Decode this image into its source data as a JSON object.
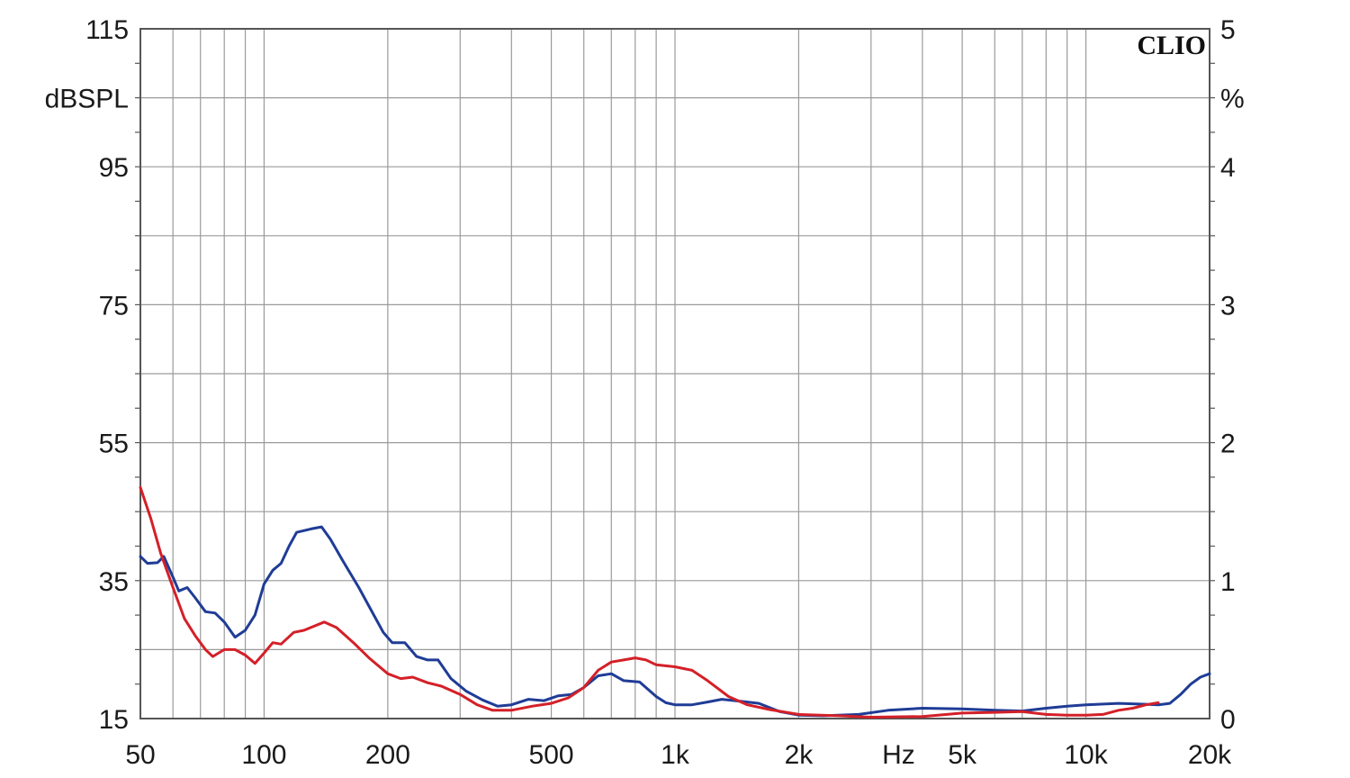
{
  "chart_data": {
    "type": "line",
    "brand": "CLIO",
    "x_axis": {
      "scale": "log",
      "range": [
        50,
        20000
      ],
      "tick_values": [
        50,
        100,
        200,
        500,
        1000,
        2000,
        5000,
        10000,
        20000
      ],
      "tick_labels": [
        "50",
        "100",
        "200",
        "500",
        "1k",
        "2k",
        "5k",
        "10k",
        "20k"
      ],
      "unit_label": "Hz",
      "unit_position": 3500
    },
    "y_left": {
      "range": [
        15,
        115
      ],
      "tick_values": [
        15,
        35,
        55,
        75,
        95,
        115
      ],
      "tick_labels": [
        "15",
        "35",
        "55",
        "75",
        "95",
        "115"
      ],
      "unit_label": "dBSPL",
      "unit_position": 105
    },
    "y_right": {
      "range": [
        0,
        5
      ],
      "tick_values": [
        0,
        1,
        2,
        3,
        4,
        5
      ],
      "tick_labels": [
        "0",
        "1",
        "2",
        "3",
        "4",
        "5"
      ],
      "unit_label": "%",
      "unit_position": 4.5
    },
    "grid": true,
    "series": [
      {
        "color": "#1f3c96",
        "axis": "left",
        "points": [
          [
            50,
            38.5
          ],
          [
            52,
            37.5
          ],
          [
            55,
            37.6
          ],
          [
            57,
            38.5
          ],
          [
            60,
            35.5
          ],
          [
            62,
            33.5
          ],
          [
            65,
            34
          ],
          [
            68,
            32.5
          ],
          [
            72,
            30.5
          ],
          [
            76,
            30.3
          ],
          [
            80,
            29
          ],
          [
            85,
            26.8
          ],
          [
            90,
            27.8
          ],
          [
            95,
            30
          ],
          [
            100,
            34.5
          ],
          [
            105,
            36.5
          ],
          [
            110,
            37.5
          ],
          [
            115,
            40
          ],
          [
            120,
            42
          ],
          [
            130,
            42.5
          ],
          [
            138,
            42.8
          ],
          [
            145,
            41
          ],
          [
            155,
            38
          ],
          [
            170,
            34
          ],
          [
            185,
            30
          ],
          [
            195,
            27.5
          ],
          [
            205,
            26
          ],
          [
            220,
            26
          ],
          [
            235,
            24
          ],
          [
            250,
            23.5
          ],
          [
            265,
            23.5
          ],
          [
            285,
            20.8
          ],
          [
            310,
            19
          ],
          [
            340,
            17.7
          ],
          [
            370,
            16.8
          ],
          [
            400,
            17
          ],
          [
            440,
            17.8
          ],
          [
            480,
            17.6
          ],
          [
            520,
            18.3
          ],
          [
            560,
            18.5
          ],
          [
            600,
            19.5
          ],
          [
            650,
            21.2
          ],
          [
            700,
            21.5
          ],
          [
            750,
            20.5
          ],
          [
            820,
            20.3
          ],
          [
            900,
            18.2
          ],
          [
            950,
            17.3
          ],
          [
            1000,
            17
          ],
          [
            1100,
            17
          ],
          [
            1200,
            17.4
          ],
          [
            1300,
            17.8
          ],
          [
            1450,
            17.5
          ],
          [
            1600,
            17.2
          ],
          [
            1800,
            16
          ],
          [
            2000,
            15.5
          ],
          [
            2300,
            15.4
          ],
          [
            2800,
            15.6
          ],
          [
            3300,
            16.2
          ],
          [
            4000,
            16.5
          ],
          [
            5000,
            16.4
          ],
          [
            6000,
            16.2
          ],
          [
            7000,
            16.1
          ],
          [
            8000,
            16.5
          ],
          [
            9000,
            16.8
          ],
          [
            10000,
            17
          ],
          [
            12000,
            17.2
          ],
          [
            13500,
            17.1
          ],
          [
            15000,
            17
          ],
          [
            16000,
            17.2
          ],
          [
            17000,
            18.5
          ],
          [
            18000,
            20
          ],
          [
            19000,
            21
          ],
          [
            20000,
            21.5
          ]
        ]
      },
      {
        "color": "#d42028",
        "axis": "left",
        "points": [
          [
            50,
            48.5
          ],
          [
            53,
            44
          ],
          [
            56,
            39
          ],
          [
            60,
            34
          ],
          [
            64,
            29.5
          ],
          [
            68,
            27
          ],
          [
            72,
            25
          ],
          [
            75,
            24
          ],
          [
            80,
            25
          ],
          [
            85,
            25
          ],
          [
            90,
            24.2
          ],
          [
            95,
            23
          ],
          [
            100,
            24.5
          ],
          [
            105,
            26
          ],
          [
            110,
            25.8
          ],
          [
            118,
            27.5
          ],
          [
            125,
            27.8
          ],
          [
            140,
            29
          ],
          [
            150,
            28.2
          ],
          [
            165,
            26
          ],
          [
            180,
            23.8
          ],
          [
            200,
            21.5
          ],
          [
            215,
            20.8
          ],
          [
            230,
            21
          ],
          [
            250,
            20.2
          ],
          [
            270,
            19.7
          ],
          [
            300,
            18.5
          ],
          [
            330,
            17
          ],
          [
            360,
            16.2
          ],
          [
            400,
            16.2
          ],
          [
            450,
            16.8
          ],
          [
            500,
            17.2
          ],
          [
            550,
            18
          ],
          [
            600,
            19.5
          ],
          [
            650,
            22
          ],
          [
            700,
            23.2
          ],
          [
            750,
            23.5
          ],
          [
            800,
            23.8
          ],
          [
            850,
            23.5
          ],
          [
            900,
            22.8
          ],
          [
            1000,
            22.5
          ],
          [
            1100,
            22
          ],
          [
            1200,
            20.5
          ],
          [
            1350,
            18.2
          ],
          [
            1500,
            17
          ],
          [
            1700,
            16.3
          ],
          [
            2000,
            15.6
          ],
          [
            2500,
            15.4
          ],
          [
            3000,
            15.2
          ],
          [
            4000,
            15.3
          ],
          [
            5000,
            15.8
          ],
          [
            6000,
            15.9
          ],
          [
            7000,
            16
          ],
          [
            8000,
            15.6
          ],
          [
            9000,
            15.5
          ],
          [
            10000,
            15.5
          ],
          [
            11000,
            15.6
          ],
          [
            12000,
            16.2
          ],
          [
            13000,
            16.5
          ],
          [
            14000,
            17
          ],
          [
            15000,
            17.3
          ]
        ]
      }
    ]
  }
}
